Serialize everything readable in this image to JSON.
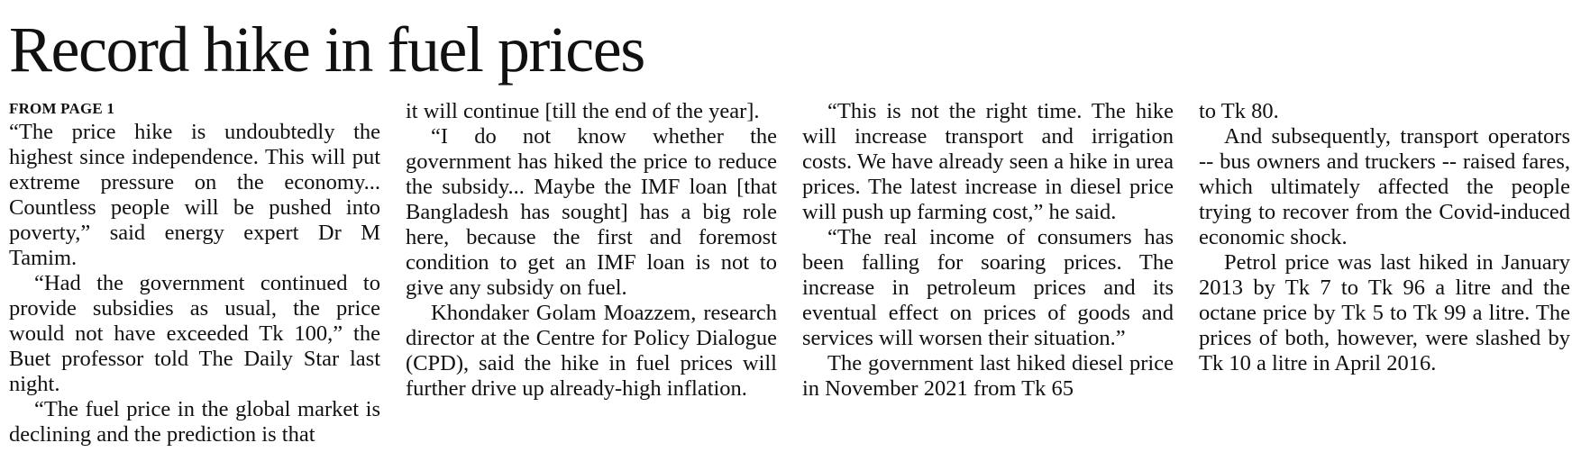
{
  "article": {
    "headline": "Record hike in fuel prices",
    "kicker": "FROM PAGE 1",
    "col1": {
      "p1": "“The price hike is undoubtedly the highest since independence. This will put extreme pressure on the economy... Countless people will be pushed into poverty,” said energy expert Dr M Tamim.",
      "p2": "“Had the government continued to provide subsidies as usual, the price would not have exceeded Tk 100,” the Buet professor told The Daily Star last night.",
      "p3": "“The fuel price in the global market is declining and the prediction is that"
    },
    "col2": {
      "p1": "it will continue [till the end of the year].",
      "p2": "“I do not know whether the government has hiked the price to reduce the subsidy... Maybe the IMF loan [that Bangladesh has sought] has a big role here, because the first and foremost condition to get an IMF loan is not to give any subsidy on fuel.",
      "p3": "Khondaker Golam Moazzem, research director at the Centre for Policy Dialogue (CPD), said the hike in fuel prices will further drive up already-high inflation."
    },
    "col3": {
      "p1": "“This is not the right time. The hike will increase transport and irrigation costs. We have already seen a hike in urea prices. The latest increase in diesel price will push up farming cost,” he said.",
      "p2": "“The real income of consumers has been falling for soaring prices. The increase in petroleum prices and its eventual effect on prices of goods and services will worsen their situation.”",
      "p3": "The government last hiked diesel price in November 2021 from Tk 65"
    },
    "col4": {
      "p1": "to Tk 80.",
      "p2": "And subsequently, transport operators -- bus owners and truckers -- raised fares, which ultimately affected the people trying to recover from the Covid-induced economic shock.",
      "p3": "Petrol price was last hiked in January 2013 by Tk 7 to Tk 96 a litre and the octane price by Tk 5 to Tk 99 a litre. The prices of both, however, were slashed by Tk 10 a litre in April 2016."
    }
  }
}
